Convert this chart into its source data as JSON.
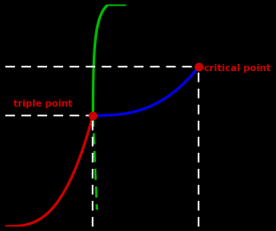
{
  "background_color": "#000000",
  "triple_point": [
    0.33,
    0.5
  ],
  "critical_point": [
    0.73,
    0.72
  ],
  "triple_label": "triple point",
  "critical_label": "critical point",
  "label_color": "#cc0000",
  "point_color": "#cc0000",
  "line_color_solid_liquid": "#00bb00",
  "line_color_liquid_gas": "#0000ee",
  "line_color_solid_gas": "#cc0000",
  "dashed_line_color": "#ffffff"
}
